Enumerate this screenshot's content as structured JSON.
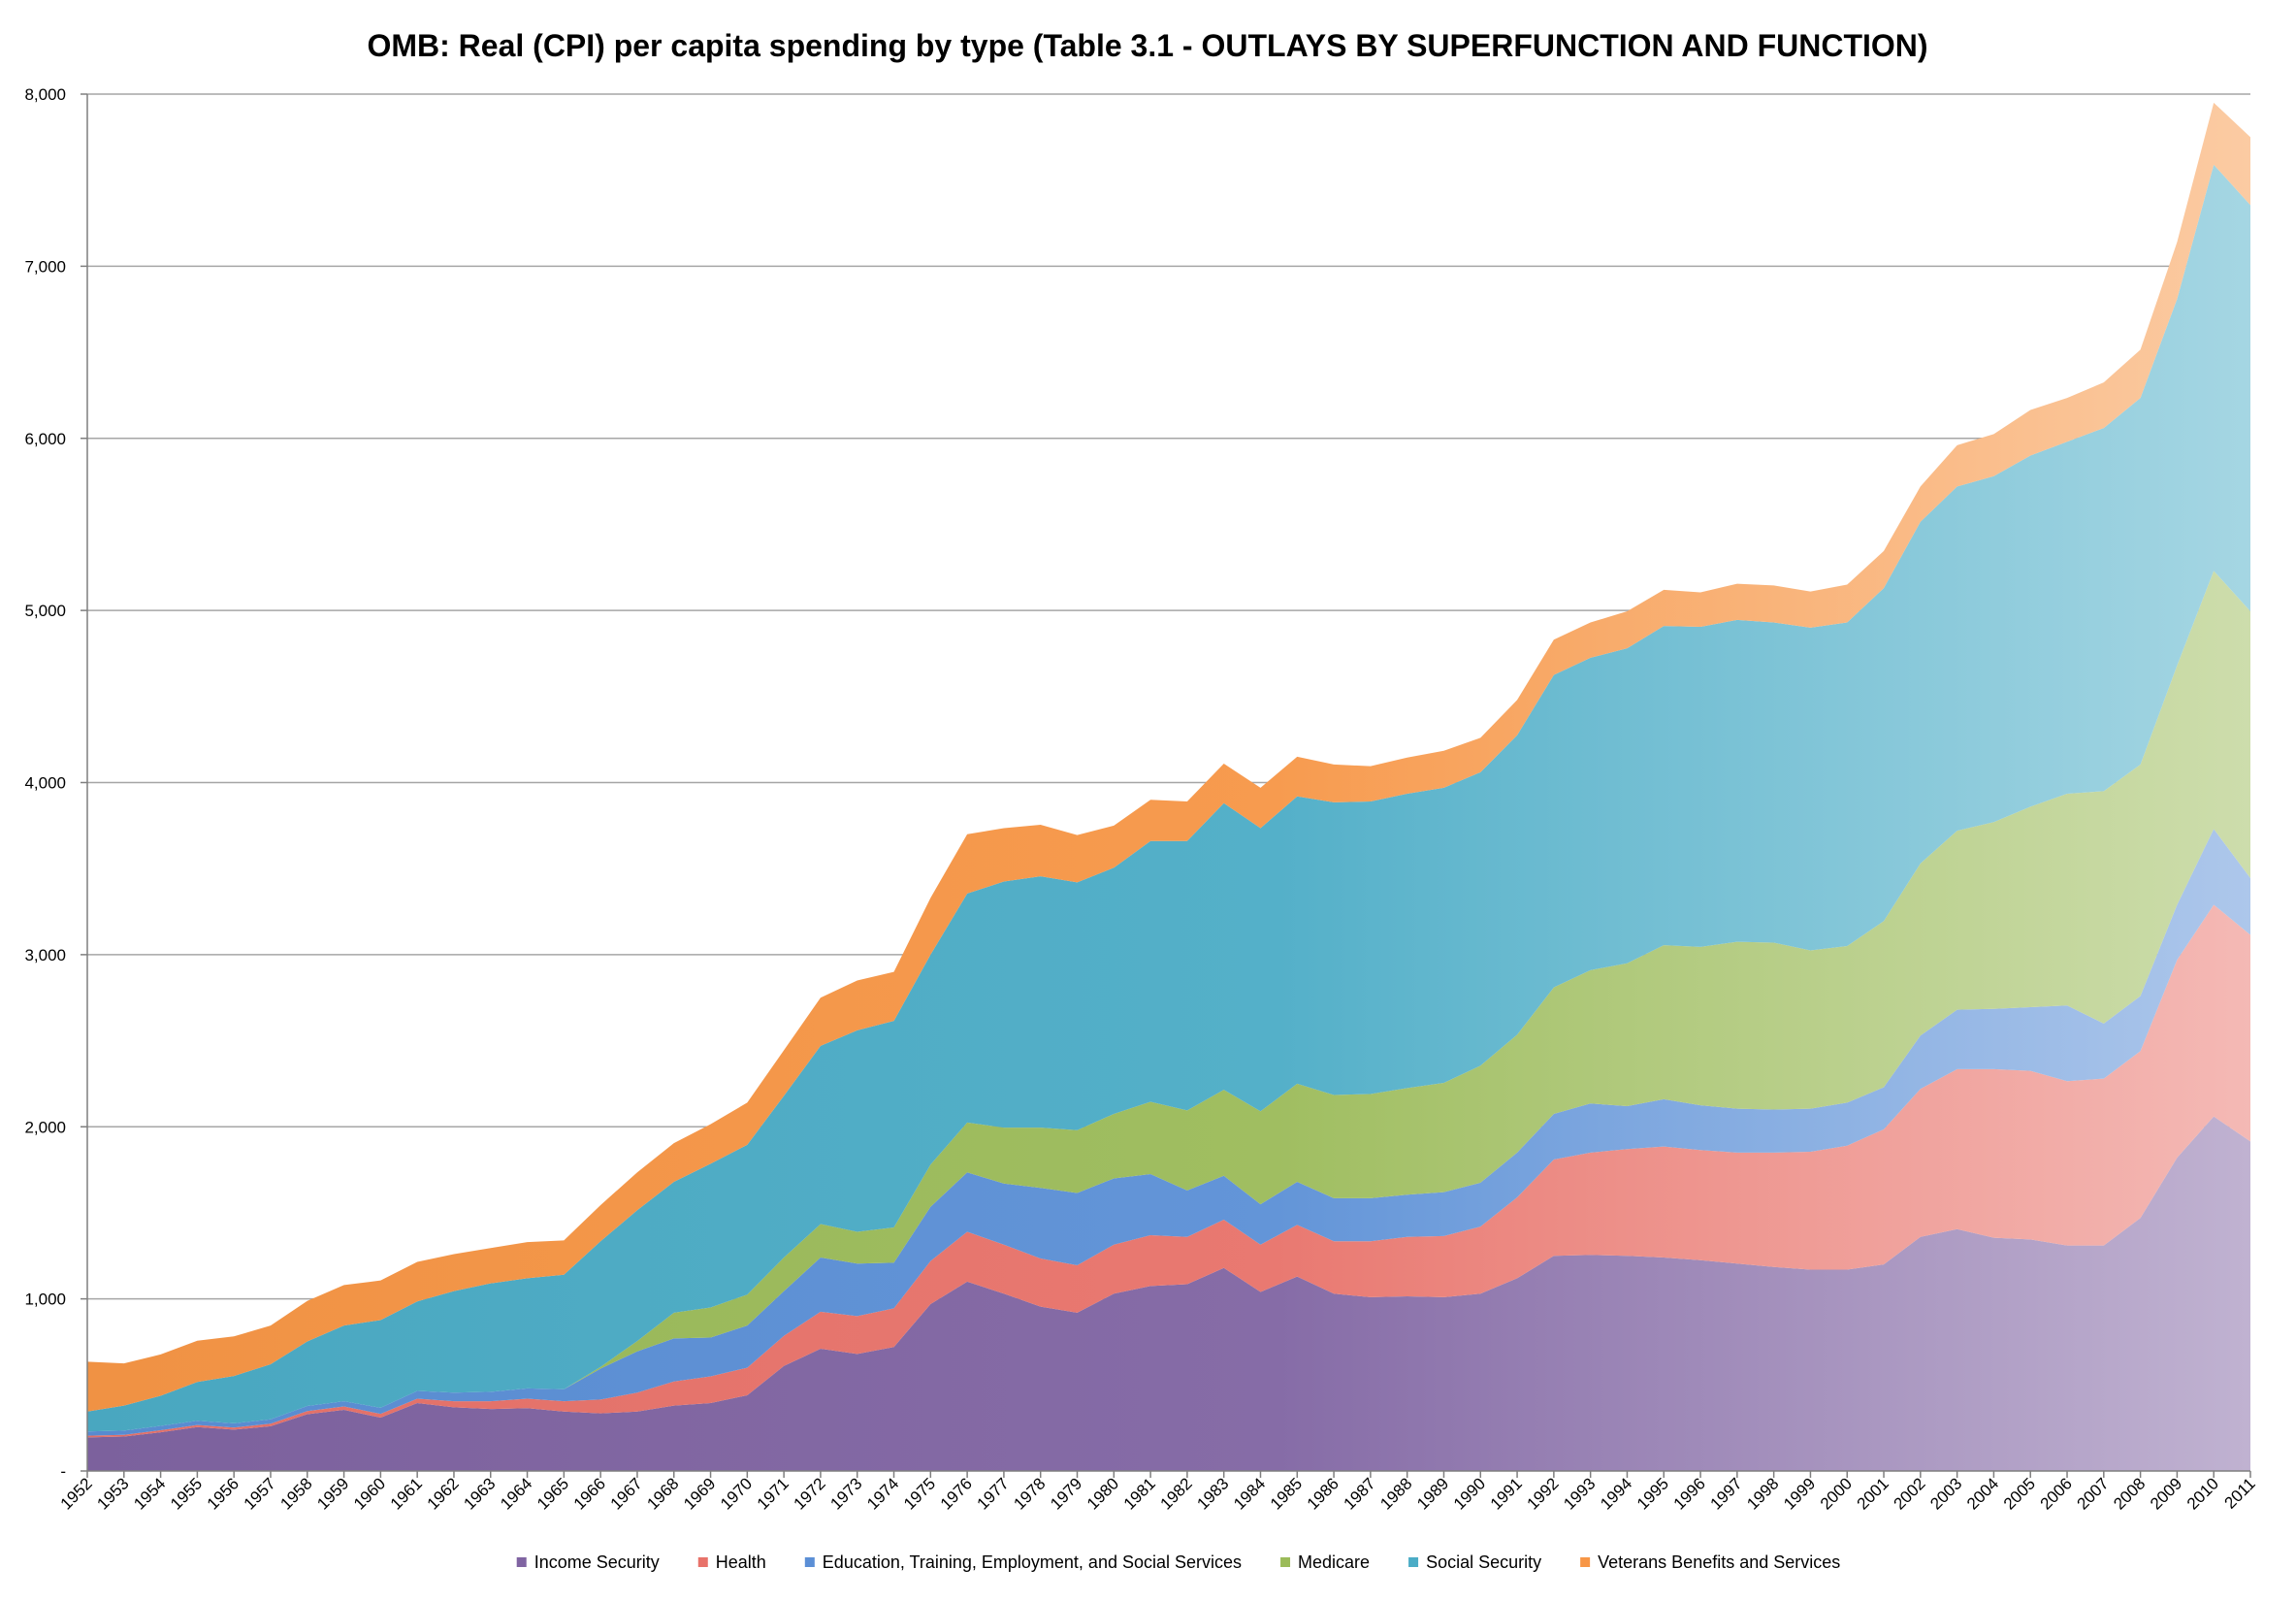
{
  "chart_data": {
    "type": "area",
    "stacked": true,
    "title": "OMB: Real (CPI) per capita spending by type (Table 3.1 - OUTLAYS BY SUPERFUNCTION AND FUNCTION)",
    "xlabel": "",
    "ylabel": "",
    "ylim": [
      0,
      8000
    ],
    "y_ticks": [
      0,
      1000,
      2000,
      3000,
      4000,
      5000,
      6000,
      7000,
      8000
    ],
    "y_tick_labels": [
      "-",
      "1,000",
      "2,000",
      "3,000",
      "4,000",
      "5,000",
      "6,000",
      "7,000",
      "8,000"
    ],
    "grid": true,
    "legend_position": "bottom",
    "categories": [
      "1952",
      "1953",
      "1954",
      "1955",
      "1956",
      "1957",
      "1958",
      "1959",
      "1960",
      "1961",
      "1962",
      "1963",
      "1964",
      "1965",
      "1966",
      "1967",
      "1968",
      "1969",
      "1970",
      "1971",
      "1972",
      "1973",
      "1974",
      "1975",
      "1976",
      "1977",
      "1978",
      "1979",
      "1980",
      "1981",
      "1982",
      "1983",
      "1984",
      "1985",
      "1986",
      "1987",
      "1988",
      "1989",
      "1990",
      "1991",
      "1992",
      "1993",
      "1994",
      "1995",
      "1996",
      "1997",
      "1998",
      "1999",
      "2000",
      "2001",
      "2002",
      "2003",
      "2004",
      "2005",
      "2006",
      "2007",
      "2008",
      "2009",
      "2010",
      "2011"
    ],
    "series": [
      {
        "name": "Income Security",
        "color": "#8064a2",
        "values": [
          195,
          200,
          225,
          255,
          240,
          260,
          330,
          355,
          310,
          395,
          370,
          360,
          365,
          345,
          335,
          345,
          380,
          395,
          440,
          610,
          710,
          680,
          720,
          970,
          1100,
          1030,
          955,
          920,
          1030,
          1075,
          1085,
          1180,
          1040,
          1130,
          1030,
          1010,
          1015,
          1010,
          1030,
          1120,
          1250,
          1255,
          1250,
          1240,
          1225,
          1205,
          1185,
          1170,
          1170,
          1200,
          1360,
          1405,
          1355,
          1345,
          1310,
          1310,
          1470,
          1820,
          2060,
          1915
        ]
      },
      {
        "name": "Health",
        "color": "#e8726a",
        "values": [
          10,
          10,
          12,
          12,
          12,
          15,
          18,
          20,
          22,
          25,
          35,
          45,
          55,
          60,
          80,
          110,
          140,
          155,
          160,
          175,
          215,
          220,
          225,
          250,
          290,
          285,
          280,
          275,
          285,
          295,
          275,
          280,
          275,
          300,
          305,
          325,
          345,
          355,
          390,
          470,
          560,
          595,
          620,
          645,
          640,
          645,
          665,
          685,
          720,
          785,
          860,
          930,
          980,
          980,
          955,
          970,
          970,
          1150,
          1230,
          1200
        ]
      },
      {
        "name": "Education, Training, Employment, and Social Services",
        "color": "#5b8fd6",
        "values": [
          25,
          25,
          25,
          25,
          25,
          25,
          30,
          30,
          35,
          45,
          50,
          55,
          60,
          70,
          180,
          240,
          250,
          225,
          245,
          260,
          315,
          305,
          265,
          315,
          345,
          355,
          410,
          420,
          385,
          355,
          270,
          255,
          235,
          250,
          250,
          250,
          245,
          255,
          255,
          260,
          265,
          285,
          250,
          275,
          260,
          255,
          250,
          250,
          250,
          245,
          310,
          345,
          350,
          370,
          440,
          320,
          320,
          320,
          440,
          330
        ]
      },
      {
        "name": "Medicare",
        "color": "#9bbb59",
        "values": [
          0,
          0,
          0,
          0,
          0,
          0,
          0,
          0,
          0,
          0,
          0,
          0,
          0,
          0,
          10,
          60,
          150,
          175,
          180,
          195,
          195,
          185,
          205,
          245,
          290,
          325,
          350,
          365,
          375,
          420,
          465,
          500,
          540,
          570,
          600,
          605,
          620,
          635,
          680,
          685,
          735,
          775,
          830,
          895,
          920,
          970,
          970,
          920,
          910,
          965,
          1000,
          1040,
          1085,
          1165,
          1230,
          1350,
          1345,
          1390,
          1500,
          1550
        ]
      },
      {
        "name": "Social Security",
        "color": "#4bacc6",
        "values": [
          115,
          145,
          175,
          225,
          275,
          320,
          375,
          440,
          510,
          520,
          590,
          630,
          640,
          665,
          730,
          760,
          760,
          835,
          870,
          940,
          1035,
          1170,
          1200,
          1220,
          1330,
          1430,
          1460,
          1440,
          1430,
          1515,
          1565,
          1665,
          1645,
          1670,
          1700,
          1700,
          1710,
          1715,
          1705,
          1740,
          1815,
          1815,
          1830,
          1855,
          1860,
          1870,
          1860,
          1875,
          1880,
          1935,
          1985,
          2000,
          2010,
          2040,
          2045,
          2110,
          2130,
          2130,
          2360,
          2360
        ]
      },
      {
        "name": "Veterans Benefits and Services",
        "color": "#f79646",
        "values": [
          290,
          245,
          240,
          240,
          230,
          225,
          235,
          235,
          230,
          230,
          215,
          205,
          210,
          200,
          210,
          220,
          225,
          230,
          245,
          265,
          280,
          290,
          285,
          330,
          345,
          310,
          300,
          275,
          245,
          240,
          230,
          230,
          235,
          230,
          220,
          205,
          210,
          215,
          200,
          205,
          205,
          205,
          215,
          210,
          200,
          210,
          215,
          210,
          220,
          215,
          205,
          240,
          245,
          265,
          255,
          265,
          280,
          330,
          360,
          395
        ]
      }
    ]
  }
}
